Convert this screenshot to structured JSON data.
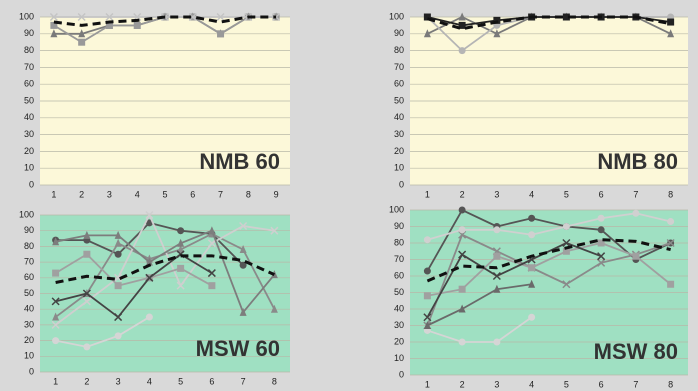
{
  "chart_data": [
    {
      "type": "line",
      "title": "NMB 60",
      "categories": [
        "1",
        "2",
        "3",
        "4",
        "5",
        "6",
        "7",
        "8",
        "9"
      ],
      "ylim": [
        0,
        100
      ],
      "yticks": [
        0,
        10,
        20,
        30,
        40,
        50,
        60,
        70,
        80,
        90,
        100
      ],
      "grid": true,
      "plot_color": "#fcf8d9",
      "series": [
        {
          "color": "#7a7a7a",
          "marker": "triangle",
          "values": [
            90,
            90,
            95,
            95,
            100,
            100,
            90,
            100,
            100
          ]
        },
        {
          "color": "#999999",
          "marker": "square",
          "values": [
            95,
            85,
            95,
            95,
            100,
            100,
            90,
            100,
            100
          ]
        },
        {
          "color": "#c4c4c4",
          "marker": "x",
          "values": [
            100,
            100,
            100,
            100,
            100,
            100,
            100,
            100,
            100
          ]
        },
        {
          "color": "#111111",
          "dash": true,
          "values": [
            97,
            95,
            97,
            98,
            100,
            100,
            97,
            100,
            100
          ]
        }
      ]
    },
    {
      "type": "line",
      "title": "NMB 80",
      "categories": [
        "1",
        "2",
        "3",
        "4",
        "5",
        "6",
        "7",
        "8"
      ],
      "ylim": [
        0,
        100
      ],
      "yticks": [
        0,
        10,
        20,
        30,
        40,
        50,
        60,
        70,
        80,
        90,
        100
      ],
      "grid": true,
      "plot_color": "#fcf8d9",
      "series": [
        {
          "color": "#7a7a7a",
          "marker": "triangle",
          "values": [
            90,
            100,
            90,
            100,
            100,
            100,
            100,
            90
          ]
        },
        {
          "color": "#b5b5b5",
          "marker": "circle",
          "values": [
            100,
            80,
            95,
            100,
            100,
            100,
            100,
            100
          ]
        },
        {
          "color": "#222222",
          "marker": "square",
          "values": [
            100,
            95,
            98,
            100,
            100,
            100,
            100,
            97
          ]
        },
        {
          "color": "#111111",
          "dash": true,
          "values": [
            99,
            93,
            97,
            100,
            100,
            100,
            100,
            96
          ]
        }
      ]
    },
    {
      "type": "line",
      "title": "MSW 60",
      "categories": [
        "1",
        "2",
        "3",
        "4",
        "5",
        "6",
        "7",
        "8"
      ],
      "ylim": [
        0,
        100
      ],
      "yticks": [
        0,
        10,
        20,
        30,
        40,
        50,
        60,
        70,
        80,
        90,
        100
      ],
      "grid": true,
      "plot_color": "#9fe0c2",
      "series": [
        {
          "color": "#555555",
          "marker": "circle",
          "values": [
            84,
            84,
            75,
            95,
            90,
            88,
            68,
            null
          ]
        },
        {
          "color": "#8a8a8a",
          "marker": "triangle",
          "values": [
            35,
            50,
            82,
            72,
            78,
            88,
            78,
            40
          ]
        },
        {
          "color": "#cfcfcf",
          "marker": "x",
          "values": [
            30,
            45,
            60,
            100,
            55,
            82,
            93,
            90
          ]
        },
        {
          "color": "#a0a0a0",
          "marker": "square",
          "values": [
            63,
            75,
            55,
            60,
            66,
            55,
            null,
            null
          ]
        },
        {
          "color": "#444444",
          "marker": "x",
          "values": [
            45,
            50,
            35,
            60,
            75,
            63,
            null,
            null
          ]
        },
        {
          "color": "#d5d5d5",
          "marker": "circle",
          "values": [
            20,
            16,
            23,
            35,
            null,
            null,
            null,
            null
          ]
        },
        {
          "color": "#7d7d7d",
          "marker": "triangle",
          "values": [
            83,
            87,
            87,
            70,
            82,
            90,
            38,
            62
          ]
        },
        {
          "color": "#111111",
          "dash": true,
          "values": [
            57,
            61,
            59,
            68,
            74,
            74,
            71,
            62
          ]
        }
      ]
    },
    {
      "type": "line",
      "title": "MSW 80",
      "categories": [
        "1",
        "2",
        "3",
        "4",
        "5",
        "6",
        "7",
        "8"
      ],
      "ylim": [
        0,
        100
      ],
      "yticks": [
        0,
        10,
        20,
        30,
        40,
        50,
        60,
        70,
        80,
        90,
        100
      ],
      "grid": true,
      "plot_color": "#9fe0c2",
      "series": [
        {
          "color": "#555555",
          "marker": "circle",
          "values": [
            63,
            100,
            90,
            95,
            90,
            88,
            70,
            80
          ]
        },
        {
          "color": "#8a8a8a",
          "marker": "x",
          "values": [
            30,
            85,
            75,
            65,
            55,
            68,
            73,
            80
          ]
        },
        {
          "color": "#d0d0d0",
          "marker": "circle",
          "values": [
            82,
            88,
            88,
            85,
            90,
            95,
            98,
            93
          ]
        },
        {
          "color": "#a0a0a0",
          "marker": "square",
          "values": [
            48,
            52,
            72,
            65,
            75,
            80,
            72,
            55
          ]
        },
        {
          "color": "#444444",
          "marker": "x",
          "values": [
            35,
            73,
            60,
            70,
            80,
            72,
            null,
            null
          ]
        },
        {
          "color": "#d5d5d5",
          "marker": "circle",
          "values": [
            27,
            20,
            20,
            35,
            null,
            null,
            null,
            null
          ]
        },
        {
          "color": "#6a6a6a",
          "marker": "triangle",
          "values": [
            30,
            40,
            52,
            55,
            null,
            null,
            null,
            null
          ]
        },
        {
          "color": "#111111",
          "dash": true,
          "values": [
            57,
            66,
            65,
            72,
            77,
            82,
            81,
            76
          ]
        }
      ]
    }
  ]
}
